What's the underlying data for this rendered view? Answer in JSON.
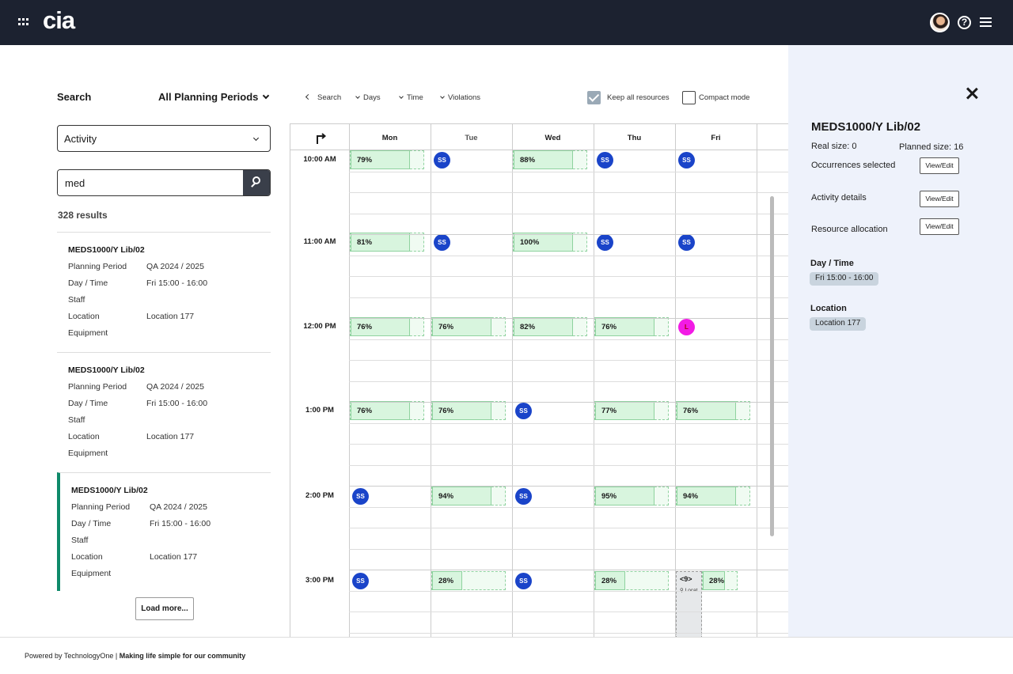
{
  "header": {
    "logo": "cia"
  },
  "left": {
    "search_label": "Search",
    "period_select": "All Planning Periods",
    "activity_select": "Activity",
    "search_value": "med",
    "results_count": "328 results",
    "results": [
      {
        "title": "MEDS1000/Y Lib/02",
        "planning_period_label": "Planning Period",
        "planning_period": "QA 2024 / 2025",
        "day_time_label": "Day / Time",
        "day_time": "Fri 15:00 - 16:00",
        "staff_label": "Staff",
        "location_label": "Location",
        "location": "Location 177",
        "equipment_label": "Equipment"
      },
      {
        "title": "MEDS1000/Y Lib/02",
        "planning_period_label": "Planning Period",
        "planning_period": "QA 2024 / 2025",
        "day_time_label": "Day / Time",
        "day_time": "Fri 15:00 - 16:00",
        "staff_label": "Staff",
        "location_label": "Location",
        "location": "Location 177",
        "equipment_label": "Equipment"
      },
      {
        "title": "MEDS1000/Y Lib/02",
        "planning_period_label": "Planning Period",
        "planning_period": "QA 2024 / 2025",
        "day_time_label": "Day / Time",
        "day_time": "Fri 15:00 - 16:00",
        "staff_label": "Staff",
        "location_label": "Location",
        "location": "Location 177",
        "equipment_label": "Equipment"
      }
    ],
    "load_more": "Load more..."
  },
  "toolbar": {
    "search": "Search",
    "days": "Days",
    "time": "Time",
    "violations": "Violations",
    "keep_all_resources": "Keep all resources",
    "keep_all_checked": true,
    "compact_mode": "Compact mode",
    "compact_checked": false
  },
  "calendar": {
    "days": [
      "Mon",
      "Tue",
      "Wed",
      "Thu",
      "Fri"
    ],
    "times": [
      "10:00 AM",
      "11:00 AM",
      "12:00 PM",
      "1:00 PM",
      "2:00 PM",
      "3:00 PM"
    ],
    "cells": [
      [
        {
          "type": "pct",
          "label": "79%"
        },
        {
          "type": "ss",
          "label": "SS"
        },
        {
          "type": "pct",
          "label": "88%"
        },
        {
          "type": "ss",
          "label": "SS"
        },
        {
          "type": "ss",
          "label": "SS"
        }
      ],
      [
        {
          "type": "pct",
          "label": "81%"
        },
        {
          "type": "ss",
          "label": "SS"
        },
        {
          "type": "pct",
          "label": "100%"
        },
        {
          "type": "ss",
          "label": "SS"
        },
        {
          "type": "ss",
          "label": "SS"
        }
      ],
      [
        {
          "type": "pct",
          "label": "76%"
        },
        {
          "type": "pct",
          "label": "76%"
        },
        {
          "type": "pct",
          "label": "82%"
        },
        {
          "type": "pct",
          "label": "76%"
        },
        {
          "type": "pink",
          "label": "L"
        }
      ],
      [
        {
          "type": "pct",
          "label": "76%"
        },
        {
          "type": "pct",
          "label": "76%"
        },
        {
          "type": "ss",
          "label": "SS"
        },
        {
          "type": "pct",
          "label": "77%"
        },
        {
          "type": "pct",
          "label": "76%"
        }
      ],
      [
        {
          "type": "ss",
          "label": "SS"
        },
        {
          "type": "pct",
          "label": "94%"
        },
        {
          "type": "ss",
          "label": "SS"
        },
        {
          "type": "pct",
          "label": "95%"
        },
        {
          "type": "pct",
          "label": "94%"
        }
      ],
      [
        {
          "type": "ss",
          "label": "SS"
        },
        {
          "type": "pct",
          "label": "28%"
        },
        {
          "type": "ss",
          "label": "SS"
        },
        {
          "type": "pct",
          "label": "28%"
        },
        {
          "type": "pct",
          "label": "28%"
        }
      ]
    ],
    "fri_3pm_block": {
      "count": "<9>",
      "location": "Locat"
    }
  },
  "details": {
    "title": "MEDS1000/Y Lib/02",
    "real_size": "Real size: 0",
    "planned_size": "Planned size: 16",
    "occurrences_selected": "Occurrences selected",
    "activity_details": "Activity details",
    "resource_allocation": "Resource allocation",
    "view_edit": "View/Edit",
    "day_time_head": "Day / Time",
    "day_time": "Fri 15:00 - 16:00",
    "location_head": "Location",
    "location": "Location 177"
  },
  "footer": {
    "powered": "Powered by TechnologyOne |",
    "tagline": "Making life simple for our community"
  },
  "colors": {
    "topbar": "#1c2230",
    "accent_green": "#0f8a6a",
    "ss_blue": "#1a44c9",
    "pink": "#f21be5",
    "panel_bg": "#eef2fb"
  }
}
